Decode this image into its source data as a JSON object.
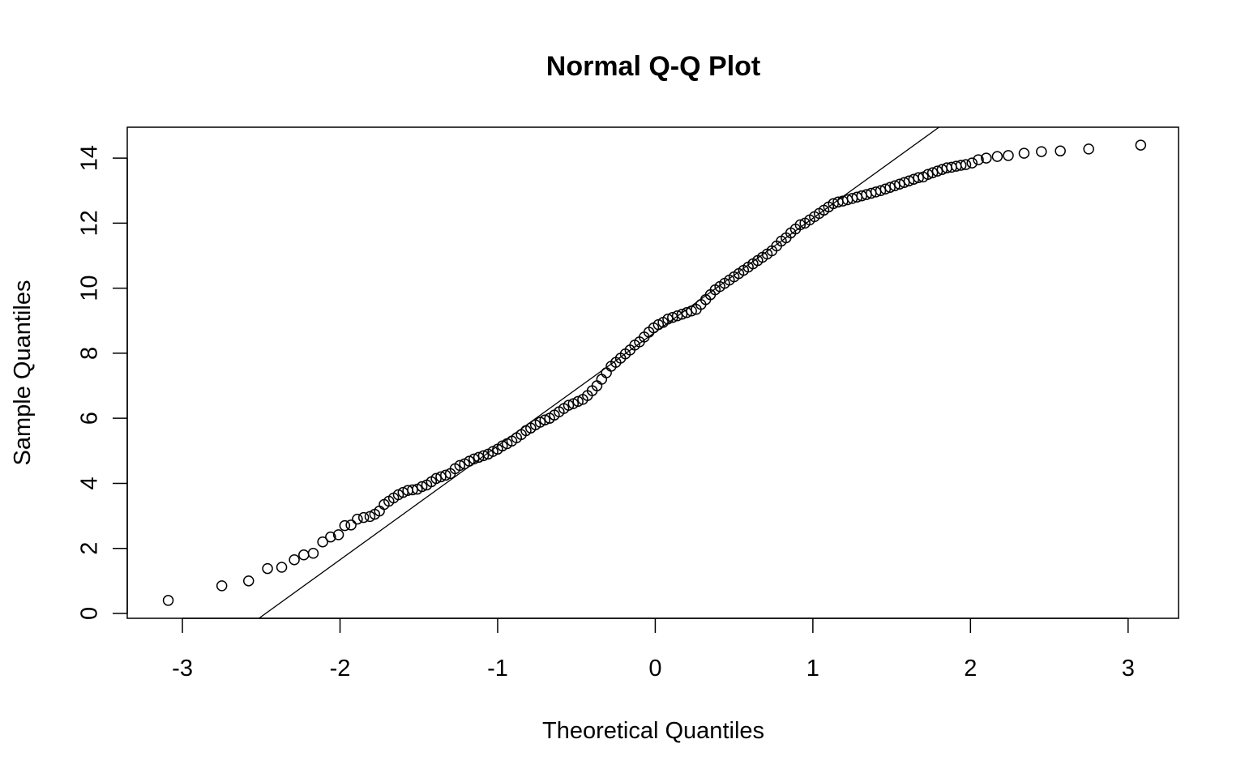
{
  "chart_data": {
    "type": "scatter",
    "title": "Normal Q-Q Plot",
    "xlabel": "Theoretical Quantiles",
    "ylabel": "Sample Quantiles",
    "xlim": [
      -3.35,
      3.32
    ],
    "ylim": [
      -0.15,
      14.95
    ],
    "x_ticks": [
      -3,
      -2,
      -1,
      0,
      1,
      2,
      3
    ],
    "x_tick_labels": [
      "-3",
      "-2",
      "-1",
      "0",
      "1",
      "2",
      "3"
    ],
    "y_ticks": [
      0,
      2,
      4,
      6,
      8,
      10,
      12,
      14
    ],
    "y_tick_labels": [
      "0",
      "2",
      "4",
      "6",
      "8",
      "10",
      "12",
      "14"
    ],
    "grid": false,
    "reference_line": {
      "intercept": 8.65,
      "slope": 3.5
    },
    "series": [
      {
        "marker": "open-circle",
        "points": [
          [
            -3.09,
            0.4
          ],
          [
            -2.75,
            0.85
          ],
          [
            -2.58,
            1.0
          ],
          [
            -2.46,
            1.38
          ],
          [
            -2.37,
            1.42
          ],
          [
            -2.29,
            1.65
          ],
          [
            -2.23,
            1.8
          ],
          [
            -2.17,
            1.85
          ],
          [
            -2.11,
            2.2
          ],
          [
            -2.06,
            2.35
          ],
          [
            -2.01,
            2.42
          ],
          [
            -1.97,
            2.7
          ],
          [
            -1.93,
            2.72
          ],
          [
            -1.89,
            2.9
          ],
          [
            -1.85,
            2.95
          ],
          [
            -1.81,
            2.98
          ],
          [
            -1.78,
            3.05
          ],
          [
            -1.75,
            3.15
          ],
          [
            -1.72,
            3.35
          ],
          [
            -1.69,
            3.45
          ],
          [
            -1.66,
            3.55
          ],
          [
            -1.63,
            3.65
          ],
          [
            -1.6,
            3.72
          ],
          [
            -1.57,
            3.78
          ],
          [
            -1.54,
            3.8
          ],
          [
            -1.51,
            3.82
          ],
          [
            -1.48,
            3.9
          ],
          [
            -1.45,
            3.95
          ],
          [
            -1.42,
            4.05
          ],
          [
            -1.39,
            4.15
          ],
          [
            -1.36,
            4.2
          ],
          [
            -1.33,
            4.25
          ],
          [
            -1.3,
            4.3
          ],
          [
            -1.27,
            4.45
          ],
          [
            -1.24,
            4.55
          ],
          [
            -1.21,
            4.6
          ],
          [
            -1.18,
            4.68
          ],
          [
            -1.15,
            4.75
          ],
          [
            -1.12,
            4.8
          ],
          [
            -1.09,
            4.85
          ],
          [
            -1.06,
            4.9
          ],
          [
            -1.03,
            4.98
          ],
          [
            -1.0,
            5.05
          ],
          [
            -0.97,
            5.15
          ],
          [
            -0.94,
            5.22
          ],
          [
            -0.91,
            5.3
          ],
          [
            -0.88,
            5.4
          ],
          [
            -0.85,
            5.5
          ],
          [
            -0.82,
            5.62
          ],
          [
            -0.79,
            5.7
          ],
          [
            -0.76,
            5.8
          ],
          [
            -0.73,
            5.88
          ],
          [
            -0.7,
            5.95
          ],
          [
            -0.67,
            6.0
          ],
          [
            -0.64,
            6.1
          ],
          [
            -0.61,
            6.2
          ],
          [
            -0.58,
            6.3
          ],
          [
            -0.55,
            6.4
          ],
          [
            -0.52,
            6.45
          ],
          [
            -0.49,
            6.52
          ],
          [
            -0.46,
            6.58
          ],
          [
            -0.43,
            6.7
          ],
          [
            -0.4,
            6.85
          ],
          [
            -0.37,
            7.0
          ],
          [
            -0.34,
            7.2
          ],
          [
            -0.31,
            7.4
          ],
          [
            -0.28,
            7.6
          ],
          [
            -0.25,
            7.72
          ],
          [
            -0.22,
            7.85
          ],
          [
            -0.19,
            7.98
          ],
          [
            -0.16,
            8.1
          ],
          [
            -0.13,
            8.25
          ],
          [
            -0.1,
            8.35
          ],
          [
            -0.07,
            8.5
          ],
          [
            -0.04,
            8.65
          ],
          [
            -0.01,
            8.78
          ],
          [
            0.02,
            8.88
          ],
          [
            0.05,
            8.95
          ],
          [
            0.08,
            9.05
          ],
          [
            0.11,
            9.1
          ],
          [
            0.14,
            9.15
          ],
          [
            0.17,
            9.2
          ],
          [
            0.2,
            9.25
          ],
          [
            0.23,
            9.3
          ],
          [
            0.26,
            9.35
          ],
          [
            0.29,
            9.5
          ],
          [
            0.32,
            9.65
          ],
          [
            0.35,
            9.8
          ],
          [
            0.38,
            9.95
          ],
          [
            0.41,
            10.05
          ],
          [
            0.44,
            10.15
          ],
          [
            0.47,
            10.25
          ],
          [
            0.5,
            10.35
          ],
          [
            0.53,
            10.45
          ],
          [
            0.56,
            10.55
          ],
          [
            0.59,
            10.65
          ],
          [
            0.62,
            10.75
          ],
          [
            0.65,
            10.85
          ],
          [
            0.68,
            10.95
          ],
          [
            0.71,
            11.05
          ],
          [
            0.74,
            11.15
          ],
          [
            0.77,
            11.3
          ],
          [
            0.8,
            11.45
          ],
          [
            0.83,
            11.55
          ],
          [
            0.86,
            11.7
          ],
          [
            0.89,
            11.82
          ],
          [
            0.92,
            11.95
          ],
          [
            0.95,
            12.0
          ],
          [
            0.98,
            12.1
          ],
          [
            1.01,
            12.2
          ],
          [
            1.04,
            12.3
          ],
          [
            1.07,
            12.4
          ],
          [
            1.1,
            12.5
          ],
          [
            1.13,
            12.6
          ],
          [
            1.16,
            12.65
          ],
          [
            1.19,
            12.68
          ],
          [
            1.22,
            12.72
          ],
          [
            1.25,
            12.76
          ],
          [
            1.28,
            12.8
          ],
          [
            1.31,
            12.84
          ],
          [
            1.34,
            12.88
          ],
          [
            1.37,
            12.92
          ],
          [
            1.4,
            12.96
          ],
          [
            1.43,
            13.0
          ],
          [
            1.46,
            13.05
          ],
          [
            1.49,
            13.1
          ],
          [
            1.52,
            13.15
          ],
          [
            1.55,
            13.2
          ],
          [
            1.58,
            13.25
          ],
          [
            1.61,
            13.3
          ],
          [
            1.64,
            13.35
          ],
          [
            1.67,
            13.4
          ],
          [
            1.7,
            13.42
          ],
          [
            1.73,
            13.5
          ],
          [
            1.76,
            13.55
          ],
          [
            1.79,
            13.6
          ],
          [
            1.82,
            13.65
          ],
          [
            1.85,
            13.7
          ],
          [
            1.88,
            13.72
          ],
          [
            1.91,
            13.75
          ],
          [
            1.94,
            13.78
          ],
          [
            1.97,
            13.8
          ],
          [
            2.01,
            13.85
          ],
          [
            2.05,
            13.95
          ],
          [
            2.1,
            14.0
          ],
          [
            2.17,
            14.05
          ],
          [
            2.24,
            14.08
          ],
          [
            2.34,
            14.15
          ],
          [
            2.45,
            14.2
          ],
          [
            2.57,
            14.22
          ],
          [
            2.75,
            14.28
          ],
          [
            3.08,
            14.4
          ]
        ]
      }
    ]
  }
}
